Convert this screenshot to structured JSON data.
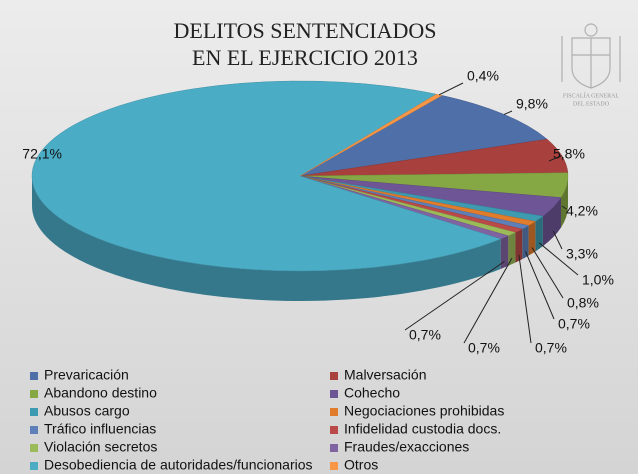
{
  "chart_data": {
    "type": "pie",
    "title": [
      "DELITOS SENTENCIADOS",
      "EN EL EJERCICIO 2013"
    ],
    "logo": [
      "FISCALÍA GENERAL",
      "DEL ESTADO"
    ],
    "categories": [
      "Prevaricación",
      "Malversación",
      "Abandono destino",
      "Cohecho",
      "Abusos cargo",
      "Negociaciones prohibidas",
      "Tráfico influencias",
      "Infidelidad custodia docs.",
      "Violación secretos",
      "Fraudes/exacciones",
      "Desobediencia de autoridades/funcionarios",
      "Otros"
    ],
    "values": [
      9.8,
      5.8,
      4.2,
      3.3,
      1.0,
      0.8,
      0.7,
      0.7,
      0.7,
      0.7,
      72.1,
      0.4
    ],
    "value_labels": [
      "9,8%",
      "5,8%",
      "4,2%",
      "3,3%",
      "1,0%",
      "0,8%",
      "0,7%",
      "0,7%",
      "0,7%",
      "0,7%",
      "72,1%",
      "0,4%"
    ],
    "colors": [
      "#4f6fa8",
      "#a8403e",
      "#86a844",
      "#6e5596",
      "#3d9ab0",
      "#e07c2c",
      "#5d80b8",
      "#b94a48",
      "#9bbb59",
      "#8064a2",
      "#4bacc6",
      "#f79646"
    ],
    "legend": "bottom"
  }
}
